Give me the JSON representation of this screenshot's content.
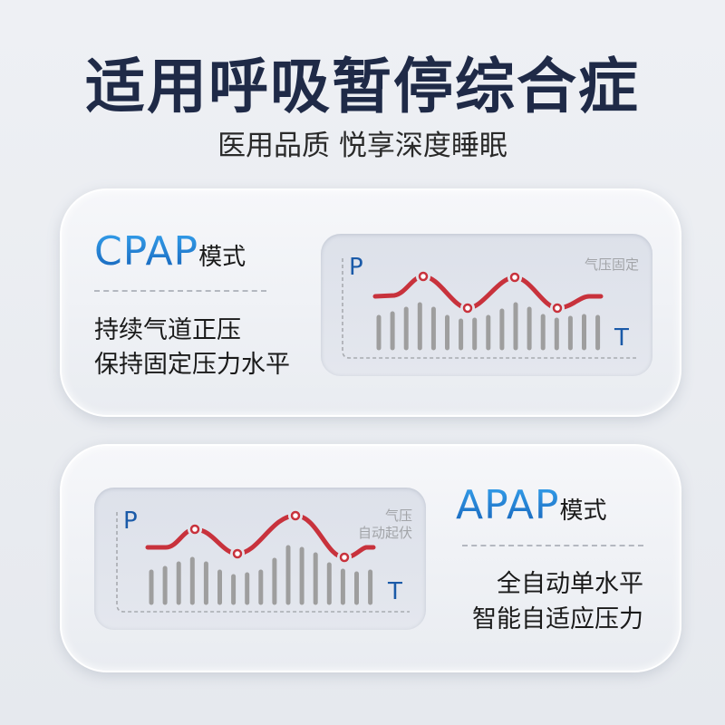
{
  "title": "适用呼吸暂停综合症",
  "subtitle": "医用品质 悦享深度睡眠",
  "cpap": {
    "mode": "CPAP",
    "suffix": "模式",
    "lines": [
      "持续气道正压",
      "保持固定压力水平"
    ],
    "chart": {
      "p_label": "P",
      "t_label": "T",
      "note": "气压固定"
    }
  },
  "apap": {
    "mode": "APAP",
    "suffix": "模式",
    "lines": [
      "全自动单水平",
      "智能自适应压力"
    ],
    "chart": {
      "p_label": "P",
      "t_label": "T",
      "note_lines": [
        "气压",
        "自动起伏"
      ]
    }
  },
  "colors": {
    "title": "#1f2a47",
    "mode_blue": "#1f7ccf",
    "curve_red": "#c8323c",
    "bar_gray": "#9e9e9e"
  }
}
